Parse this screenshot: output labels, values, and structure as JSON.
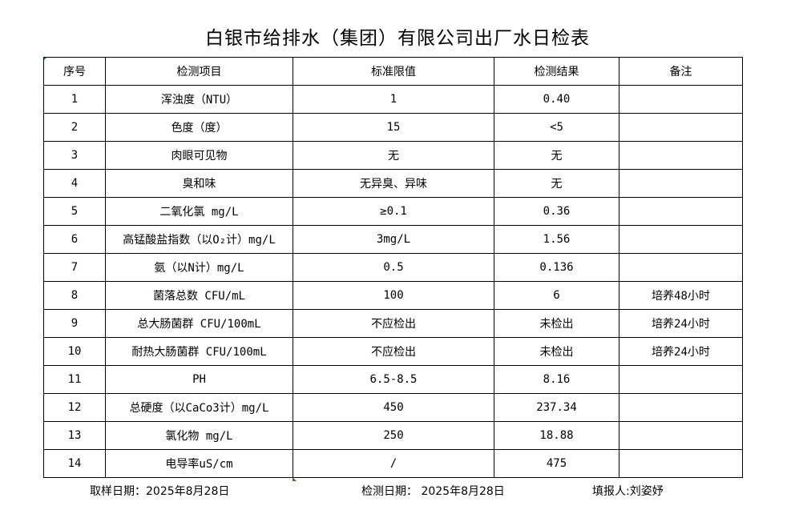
{
  "title": "白银市给排水（集团）有限公司出厂水日检表",
  "headers": [
    "序号",
    "检测项目",
    "标准限值",
    "检测结果",
    "备注"
  ],
  "rows": [
    [
      "1",
      "浑浊度（NTU）",
      "1",
      "0.40",
      ""
    ],
    [
      "2",
      "色度（度）",
      "15",
      "<5",
      ""
    ],
    [
      "3",
      "肉眼可见物",
      "无",
      "无",
      ""
    ],
    [
      "4",
      "臭和味",
      "无异臭、异味",
      "无",
      ""
    ],
    [
      "5",
      "二氧化氯 mg/L",
      "≥0.1",
      "0.36",
      ""
    ],
    [
      "6",
      "高锰酸盐指数（以O₂计）mg/L",
      "3mg/L",
      "1.56",
      ""
    ],
    [
      "7",
      "氨（以N计）mg/L",
      "0.5",
      "0.136",
      ""
    ],
    [
      "8",
      "菌落总数 CFU/mL",
      "100",
      "6",
      "培养48小时"
    ],
    [
      "9",
      "总大肠菌群 CFU/100mL",
      "不应检出",
      "未检出",
      "培养24小时"
    ],
    [
      "10",
      "耐热大肠菌群 CFU/100mL",
      "不应检出",
      "未检出",
      "培养24小时"
    ],
    [
      "11",
      "PH",
      "6.5-8.5",
      "8.16",
      ""
    ],
    [
      "12",
      "总硬度（以CaCo3计）mg/L",
      "450",
      "237.34",
      ""
    ],
    [
      "13",
      "氯化物 mg/L",
      "250",
      "18.88",
      ""
    ],
    [
      "14",
      "电导率uS/cm",
      "/",
      "475",
      ""
    ]
  ],
  "footer": {
    "sampling_date": "取样日期：2025年8月28日",
    "test_date": "检测日期： 2025年8月28日",
    "reporter": "填报人:刘姿妤"
  }
}
